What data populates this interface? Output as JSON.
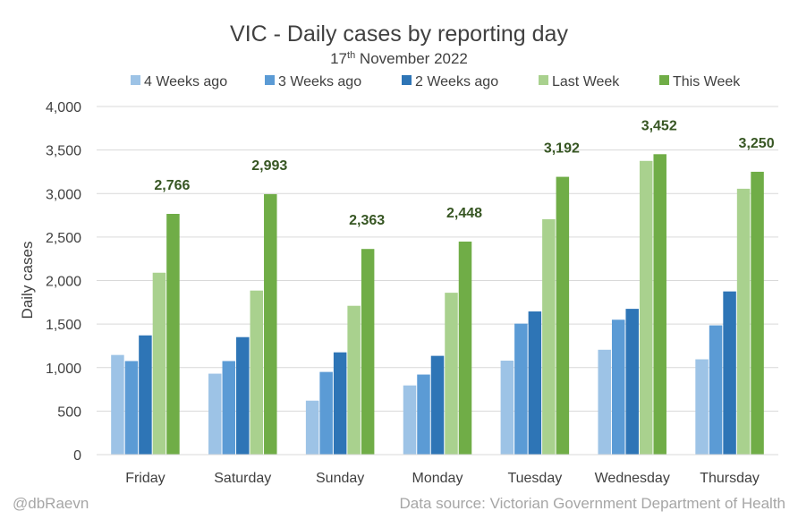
{
  "chart_data": {
    "type": "bar",
    "title": "VIC - Daily cases by reporting day",
    "subtitle": {
      "prefix": "17",
      "suffix": "th",
      "rest": " November 2022"
    },
    "xlabel": "",
    "ylabel": "Daily cases",
    "ylim": [
      0,
      4000
    ],
    "yticks": [
      0,
      500,
      1000,
      1500,
      2000,
      2500,
      3000,
      3500,
      4000
    ],
    "ytick_labels": [
      "0",
      "500",
      "1,000",
      "1,500",
      "2,000",
      "2,500",
      "3,000",
      "3,500",
      "4,000"
    ],
    "grid": true,
    "legend_position": "top",
    "categories": [
      "Friday",
      "Saturday",
      "Sunday",
      "Monday",
      "Tuesday",
      "Wednesday",
      "Thursday"
    ],
    "series": [
      {
        "name": "4 Weeks ago",
        "color": "#9dc3e6",
        "values": [
          1145,
          930,
          620,
          795,
          1080,
          1205,
          1095
        ]
      },
      {
        "name": "3 Weeks ago",
        "color": "#5b9bd5",
        "values": [
          1075,
          1075,
          950,
          920,
          1505,
          1550,
          1485
        ]
      },
      {
        "name": "2 Weeks ago",
        "color": "#2e75b6",
        "values": [
          1370,
          1350,
          1175,
          1135,
          1645,
          1675,
          1875
        ]
      },
      {
        "name": "Last Week",
        "color": "#a9d18e",
        "values": [
          2090,
          1885,
          1710,
          1860,
          2705,
          3375,
          3055
        ]
      },
      {
        "name": "This Week",
        "color": "#70ad47",
        "values": [
          2766,
          2993,
          2363,
          2448,
          3192,
          3452,
          3250
        ]
      }
    ],
    "data_labels": {
      "series": "This Week",
      "labels": [
        "2,766",
        "2,993",
        "2,363",
        "2,448",
        "3,192",
        "3,452",
        "3,250"
      ],
      "color": "#375623"
    }
  },
  "footer": {
    "left": "@dbRaevn",
    "right": "Data source: Victorian Government Department of Health"
  },
  "colors": {
    "title": "#404040",
    "axis_text": "#404040",
    "gridline": "#d9d9d9",
    "footer": "#a6a6a6"
  }
}
